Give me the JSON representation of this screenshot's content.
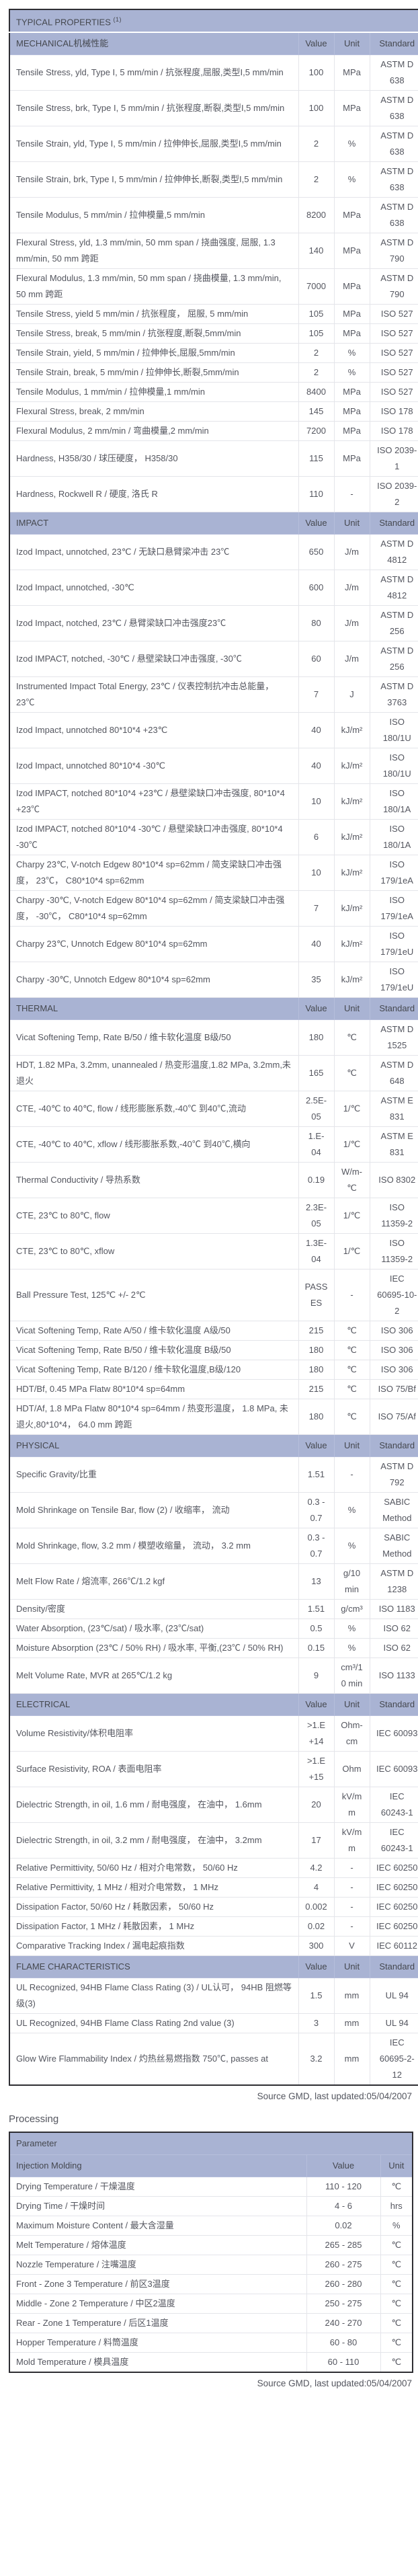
{
  "colors": {
    "header_band": "#a9b3d3"
  },
  "typical": {
    "title": "TYPICAL PROPERTIES",
    "title_sup": "(1)",
    "col_value": "Value",
    "col_unit": "Unit",
    "col_standard": "Standard",
    "source_note": "Source GMD, last updated:05/04/2007",
    "sections": [
      {
        "name": "MECHANICAL机械性能",
        "rows": [
          [
            "Tensile Stress, yld, Type I, 5 mm/min / 抗张程度,屈服,类型I,5 mm/min",
            "100",
            "MPa",
            "ASTM D 638"
          ],
          [
            "Tensile Stress, brk, Type I, 5 mm/min / 抗张程度,断裂,类型I,5 mm/min",
            "100",
            "MPa",
            "ASTM D 638"
          ],
          [
            "Tensile Strain, yld, Type I, 5 mm/min / 拉伸伸长,屈服,类型I,5 mm/min",
            "2",
            "%",
            "ASTM D 638"
          ],
          [
            "Tensile Strain, brk, Type I, 5 mm/min / 拉伸伸长,断裂,类型I,5 mm/min",
            "2",
            "%",
            "ASTM D 638"
          ],
          [
            "Tensile Modulus, 5 mm/min / 拉伸模量,5 mm/min",
            "8200",
            "MPa",
            "ASTM D 638"
          ],
          [
            "Flexural Stress, yld, 1.3 mm/min, 50 mm span / 挠曲强度, 屈服, 1.3 mm/min, 50 mm 跨距",
            "140",
            "MPa",
            "ASTM D 790"
          ],
          [
            "Flexural Modulus, 1.3 mm/min, 50 mm span / 挠曲模量, 1.3 mm/min, 50 mm 跨距",
            "7000",
            "MPa",
            "ASTM D 790"
          ],
          [
            "Tensile Stress, yield 5 mm/min / 抗张程度， 屈服, 5 mm/min",
            "105",
            "MPa",
            "ISO 527"
          ],
          [
            "Tensile Stress, break, 5 mm/min / 抗张程度,断裂,5mm/min",
            "105",
            "MPa",
            "ISO 527"
          ],
          [
            "Tensile Strain, yield, 5 mm/min / 拉伸伸长,屈服,5mm/min",
            "2",
            "%",
            "ISO 527"
          ],
          [
            "Tensile Strain, break, 5 mm/min / 拉伸伸长,断裂,5mm/min",
            "2",
            "%",
            "ISO 527"
          ],
          [
            "Tensile Modulus, 1 mm/min / 拉伸模量,1 mm/min",
            "8400",
            "MPa",
            "ISO 527"
          ],
          [
            "Flexural Stress, break, 2 mm/min",
            "145",
            "MPa",
            "ISO 178"
          ],
          [
            "Flexural Modulus, 2 mm/min / 弯曲模量,2 mm/min",
            "7200",
            "MPa",
            "ISO 178"
          ],
          [
            "Hardness, H358/30 / 球压硬度， H358/30",
            "115",
            "MPa",
            "ISO 2039-1"
          ],
          [
            "Hardness, Rockwell R / 硬度, 洛氏 R",
            "110",
            "-",
            "ISO 2039-2"
          ]
        ]
      },
      {
        "name": "IMPACT",
        "rows": [
          [
            "Izod Impact, unnotched, 23℃ / 无缺口悬臂梁冲击 23℃",
            "650",
            "J/m",
            "ASTM D 4812"
          ],
          [
            "Izod Impact, unnotched, -30℃",
            "600",
            "J/m",
            "ASTM D 4812"
          ],
          [
            "Izod Impact, notched, 23℃ / 悬臂梁缺口冲击强度23℃",
            "80",
            "J/m",
            "ASTM D 256"
          ],
          [
            "Izod IMPACT, notched, -30℃ / 悬壁梁缺口冲击强度, -30℃",
            "60",
            "J/m",
            "ASTM D 256"
          ],
          [
            "Instrumented Impact Total Energy, 23℃ / 仪表控制抗冲击总能量， 23℃",
            "7",
            "J",
            "ASTM D 3763"
          ],
          [
            "Izod Impact, unnotched 80*10*4 +23℃",
            "40",
            "kJ/m²",
            "ISO 180/1U"
          ],
          [
            "Izod Impact, unnotched 80*10*4 -30℃",
            "40",
            "kJ/m²",
            "ISO 180/1U"
          ],
          [
            "Izod IMPACT, notched 80*10*4 +23℃ / 悬壁梁缺口冲击强度, 80*10*4 +23℃",
            "10",
            "kJ/m²",
            "ISO 180/1A"
          ],
          [
            "Izod IMPACT, notched 80*10*4 -30℃ / 悬壁梁缺口冲击强度, 80*10*4 -30℃",
            "6",
            "kJ/m²",
            "ISO 180/1A"
          ],
          [
            "Charpy 23℃, V-notch Edgew 80*10*4 sp=62mm / 简支梁缺口冲击强度， 23℃， C80*10*4 sp=62mm",
            "10",
            "kJ/m²",
            "ISO 179/1eA"
          ],
          [
            "Charpy -30℃, V-notch Edgew 80*10*4 sp=62mm / 简支梁缺口冲击强度， -30℃， C80*10*4 sp=62mm",
            "7",
            "kJ/m²",
            "ISO 179/1eA"
          ],
          [
            "Charpy 23℃, Unnotch Edgew 80*10*4 sp=62mm",
            "40",
            "kJ/m²",
            "ISO 179/1eU"
          ],
          [
            "Charpy -30℃, Unnotch Edgew 80*10*4 sp=62mm",
            "35",
            "kJ/m²",
            "ISO 179/1eU"
          ]
        ]
      },
      {
        "name": "THERMAL",
        "rows": [
          [
            "Vicat Softening Temp, Rate B/50 / 维卡软化温度 B级/50",
            "180",
            "℃",
            "ASTM D 1525"
          ],
          [
            "HDT, 1.82 MPa, 3.2mm, unannealed / 热变形温度,1.82 MPa, 3.2mm,未退火",
            "165",
            "℃",
            "ASTM D 648"
          ],
          [
            "CTE, -40℃ to 40℃, flow / 线形膨胀系数,-40℃ 到40℃,流动",
            "2.5E-05",
            "1/℃",
            "ASTM E 831"
          ],
          [
            "CTE, -40℃ to 40℃, xflow / 线形膨胀系数,-40℃ 到40℃,横向",
            "1.E-04",
            "1/℃",
            "ASTM E 831"
          ],
          [
            "Thermal Conductivity / 导热系数",
            "0.19",
            "W/m-℃",
            "ISO 8302"
          ],
          [
            "CTE, 23℃ to 80℃, flow",
            "2.3E-05",
            "1/℃",
            "ISO 11359-2"
          ],
          [
            "CTE, 23℃ to 80℃, xflow",
            "1.3E-04",
            "1/℃",
            "ISO 11359-2"
          ],
          [
            "Ball Pressure Test, 125℃ +/- 2℃",
            "PASSES",
            "-",
            "IEC 60695-10-2"
          ],
          [
            "Vicat Softening Temp, Rate A/50 / 维卡软化温度 A级/50",
            "215",
            "℃",
            "ISO 306"
          ],
          [
            "Vicat Softening Temp, Rate B/50 / 维卡软化温度 B级/50",
            "180",
            "℃",
            "ISO 306"
          ],
          [
            "Vicat Softening Temp, Rate B/120 / 维卡软化温度,B级/120",
            "180",
            "℃",
            "ISO 306"
          ],
          [
            "HDT/Bf, 0.45 MPa Flatw 80*10*4 sp=64mm",
            "215",
            "℃",
            "ISO 75/Bf"
          ],
          [
            "HDT/Af, 1.8 MPa Flatw 80*10*4 sp=64mm / 热变形温度， 1.8 MPa, 未退火,80*10*4， 64.0 mm 跨距",
            "180",
            "℃",
            "ISO 75/Af"
          ]
        ]
      },
      {
        "name": "PHYSICAL",
        "rows": [
          [
            "Specific Gravity/比重",
            "1.51",
            "-",
            "ASTM D 792"
          ],
          [
            "Mold Shrinkage on Tensile Bar, flow (2) / 收缩率， 流动",
            "0.3 - 0.7",
            "%",
            "SABIC Method"
          ],
          [
            "Mold Shrinkage, flow, 3.2 mm / 模塑收缩量， 流动， 3.2 mm",
            "0.3 - 0.7",
            "%",
            "SABIC Method"
          ],
          [
            "Melt Flow Rate / 熔流率, 266℃/1.2 kgf",
            "13",
            "g/10 min",
            "ASTM D 1238"
          ],
          [
            "Density/密度",
            "1.51",
            "g/cm³",
            "ISO 1183"
          ],
          [
            "Water Absorption, (23℃/sat) / 吸水率, (23℃/sat)",
            "0.5",
            "%",
            "ISO 62"
          ],
          [
            "Moisture Absorption (23℃ / 50% RH) / 吸水率, 平衡,(23℃ / 50% RH)",
            "0.15",
            "%",
            "ISO 62"
          ],
          [
            "Melt Volume Rate, MVR at 265℃/1.2 kg",
            "9",
            "cm³/10 min",
            "ISO 1133"
          ]
        ]
      },
      {
        "name": "ELECTRICAL",
        "rows": [
          [
            "Volume Resistivity/体积电阻率",
            ">1.E+14",
            "Ohm-cm",
            "IEC 60093"
          ],
          [
            "Surface Resistivity, ROA / 表面电阻率",
            ">1.E+15",
            "Ohm",
            "IEC 60093"
          ],
          [
            "Dielectric Strength, in oil, 1.6 mm / 耐电强度， 在油中， 1.6mm",
            "20",
            "kV/mm",
            "IEC 60243-1"
          ],
          [
            "Dielectric Strength, in oil, 3.2 mm / 耐电强度， 在油中， 3.2mm",
            "17",
            "kV/mm",
            "IEC 60243-1"
          ],
          [
            "Relative Permittivity, 50/60 Hz / 相对介电常数， 50/60 Hz",
            "4.2",
            "-",
            "IEC 60250"
          ],
          [
            "Relative Permittivity, 1 MHz / 相对介电常数， 1 MHz",
            "4",
            "-",
            "IEC 60250"
          ],
          [
            "Dissipation Factor, 50/60 Hz / 耗散因素， 50/60 Hz",
            "0.002",
            "-",
            "IEC 60250"
          ],
          [
            "Dissipation Factor, 1 MHz / 耗散因素， 1 MHz",
            "0.02",
            "-",
            "IEC 60250"
          ],
          [
            "Comparative Tracking Index / 漏电起痕指数",
            "300",
            "V",
            "IEC 60112"
          ]
        ]
      },
      {
        "name": "FLAME CHARACTERISTICS",
        "rows": [
          [
            "UL Recognized, 94HB Flame Class Rating (3) / UL认可， 94HB 阻燃等级(3)",
            "1.5",
            "mm",
            "UL 94"
          ],
          [
            "UL Recognized, 94HB Flame Class Rating 2nd value (3)",
            "3",
            "mm",
            "UL 94"
          ],
          [
            "Glow Wire Flammability Index / 灼热丝易燃指数 750℃, passes at",
            "3.2",
            "mm",
            "IEC 60695-2-12"
          ]
        ]
      }
    ]
  },
  "processing": {
    "heading": "Processing",
    "param_header": "Parameter",
    "subheader": "Injection Molding",
    "col_value": "Value",
    "col_unit": "Unit",
    "source_note": "Source GMD, last updated:05/04/2007",
    "rows": [
      [
        "Drying Temperature / 干燥温度",
        "110 - 120",
        "℃"
      ],
      [
        "Drying Time / 干燥时间",
        "4 - 6",
        "hrs"
      ],
      [
        "Maximum Moisture Content / 最大含湿量",
        "0.02",
        "%"
      ],
      [
        "Melt Temperature / 熔体温度",
        "265 - 285",
        "℃"
      ],
      [
        "Nozzle Temperature / 注嘴温度",
        "260 - 275",
        "℃"
      ],
      [
        "Front - Zone 3 Temperature / 前区3温度",
        "260 - 280",
        "℃"
      ],
      [
        "Middle - Zone 2 Temperature / 中区2温度",
        "250 - 275",
        "℃"
      ],
      [
        "Rear - Zone 1 Temperature / 后区1温度",
        "240 - 270",
        "℃"
      ],
      [
        "Hopper Temperature / 料筒温度",
        "60 - 80",
        "℃"
      ],
      [
        "Mold Temperature / 模具温度",
        "60 - 110",
        "℃"
      ]
    ]
  }
}
